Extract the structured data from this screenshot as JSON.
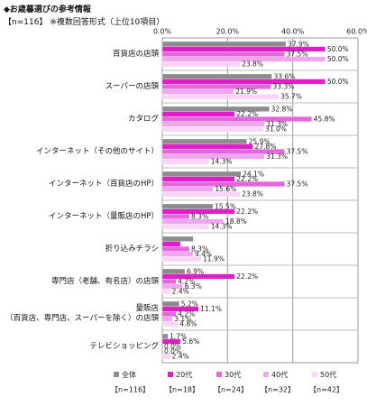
{
  "chart_data": {
    "type": "hbar",
    "title": "◆お歳暮選びの参考情報",
    "subtitle": "【n=116】 ※複数回答形式（上位10項目）",
    "categories": [
      "百貨店の店頭",
      "スーパーの店頭",
      "カタログ",
      "インターネット（その他のサイト）",
      "インターネット（百貨店のHP）",
      "インターネット（量販店のHP）",
      "折り込みチラシ",
      "専門店（老舗、有名店）の店頭",
      "量販店\n（百貨店、専門店、スーパーを除く）の店頭",
      "テレビショッピング"
    ],
    "xlim": [
      0,
      60
    ],
    "xticks": [
      {
        "value": 0,
        "label": "0.0%"
      },
      {
        "value": 20,
        "label": "20.0%"
      },
      {
        "value": 40,
        "label": "40.0%"
      },
      {
        "value": 60,
        "label": "60.0%"
      }
    ],
    "grid": true,
    "series": [
      {
        "name": "全体",
        "n": "【n=116】",
        "color": "#8c8c8c",
        "values": [
          37.9,
          33.6,
          32.8,
          25.9,
          24.1,
          15.5,
          9.5,
          6.9,
          5.2,
          1.7
        ],
        "value_labels": [
          "37.9%",
          "33.6%",
          "32.8%",
          "25.9%",
          "24.1%",
          "15.5%",
          null,
          "6.9%",
          "5.2%",
          "1.7%"
        ]
      },
      {
        "name": "20代",
        "n": "【n=18】",
        "color": "#e01ec8",
        "values": [
          50.0,
          50.0,
          22.2,
          27.8,
          22.2,
          22.2,
          5.6,
          22.2,
          11.1,
          5.6
        ],
        "value_labels": [
          "50.0%",
          "50.0%",
          "22.2%",
          "27.8%",
          "22.2%",
          "22.2%",
          null,
          "22.2%",
          "11.1%",
          "5.6%"
        ]
      },
      {
        "name": "30代",
        "n": "【n=24】",
        "color": "#e466dc",
        "values": [
          37.5,
          33.3,
          45.8,
          37.5,
          37.5,
          8.3,
          8.3,
          4.2,
          4.2,
          0.0
        ],
        "value_labels": [
          "37.5%",
          "33.3%",
          "45.8%",
          "37.5%",
          "37.5%",
          "8.3%",
          "8.3%",
          "4.2%",
          "4.2%",
          "0.0%"
        ]
      },
      {
        "name": "40代",
        "n": "【n=32】",
        "color": "#f0a6ee",
        "values": [
          50.0,
          21.9,
          31.3,
          31.3,
          15.6,
          18.8,
          9.4,
          6.3,
          3.1,
          0.0
        ],
        "value_labels": [
          "50.0%",
          "21.9%",
          "31.3%",
          "31.3%",
          "15.6%",
          "18.8%",
          "9.4%",
          "6.3%",
          "3.1%",
          "0.0%"
        ]
      },
      {
        "name": "50代",
        "n": "【n=42】",
        "color": "#f8d4f6",
        "values": [
          23.8,
          35.7,
          31.0,
          14.3,
          23.8,
          14.3,
          11.9,
          2.4,
          4.8,
          2.4
        ],
        "value_labels": [
          "23.8%",
          "35.7%",
          "31.0%",
          "14.3%",
          "23.8%",
          "14.3%",
          "11.9%",
          "2.4%",
          "4.8%",
          "2.4%"
        ]
      }
    ]
  }
}
